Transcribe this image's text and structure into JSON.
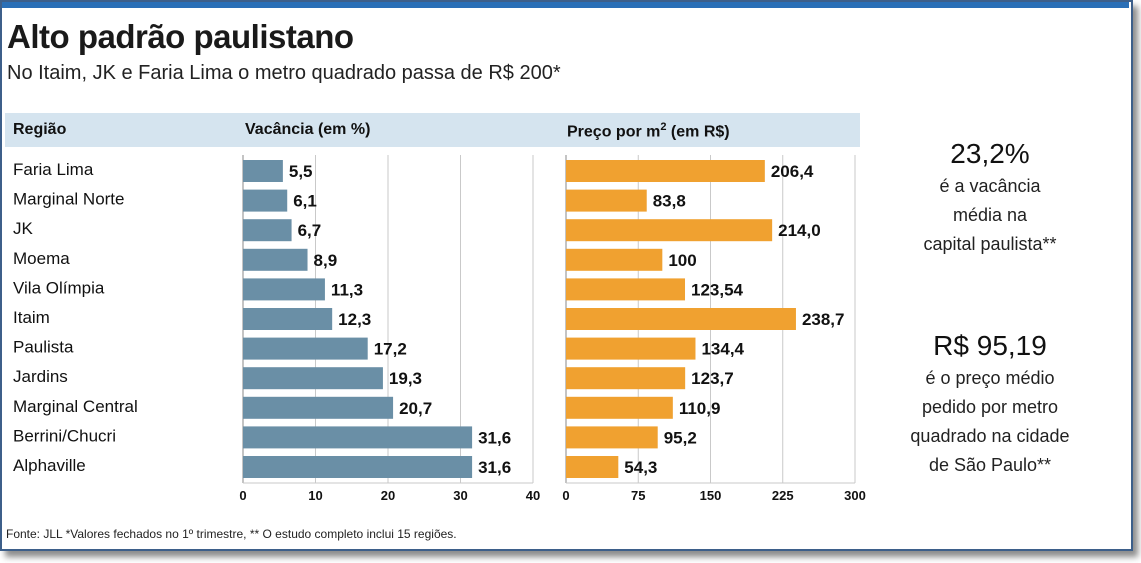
{
  "title": "Alto padrão paulistano",
  "subtitle": "No Itaim, JK e Faria Lima o metro quadrado passa de R$ 200*",
  "headers": {
    "region": "Região",
    "vacancy": "Vacância (em %)",
    "price_prefix": "Preço por m",
    "price_sup": "2",
    "price_suffix": " (em R$)"
  },
  "colors": {
    "vacancy_bar": "#6a8fa6",
    "price_bar": "#f0a130",
    "header_band": "#d5e4ef",
    "frame": "#3d5f8a"
  },
  "chart_data": [
    {
      "type": "bar",
      "orientation": "horizontal",
      "xlabel": "Vacância (em %)",
      "categories": [
        "Faria Lima",
        "Marginal Norte",
        "JK",
        "Moema",
        "Vila Olímpia",
        "Itaim",
        "Paulista",
        "Jardins",
        "Marginal Central",
        "Berrini/Chucri",
        "Alphaville"
      ],
      "values": [
        5.5,
        6.1,
        6.7,
        8.9,
        11.3,
        12.3,
        17.2,
        19.3,
        20.7,
        31.6,
        31.6
      ],
      "value_labels": [
        "5,5",
        "6,1",
        "6,7",
        "8,9",
        "11,3",
        "12,3",
        "17,2",
        "19,3",
        "20,7",
        "31,6",
        "31,6"
      ],
      "xlim": [
        0,
        40
      ],
      "ticks": [
        0,
        10,
        20,
        30,
        40
      ],
      "grid": true
    },
    {
      "type": "bar",
      "orientation": "horizontal",
      "xlabel": "Preço por m2 (em R$)",
      "categories": [
        "Faria Lima",
        "Marginal Norte",
        "JK",
        "Moema",
        "Vila Olímpia",
        "Itaim",
        "Paulista",
        "Jardins",
        "Marginal Central",
        "Berrini/Chucri",
        "Alphaville"
      ],
      "values": [
        206.4,
        83.8,
        214.0,
        100,
        123.54,
        238.7,
        134.4,
        123.7,
        110.9,
        95.2,
        54.3
      ],
      "value_labels": [
        "206,4",
        "83,8",
        "214,0",
        "100",
        "123,54",
        "238,7",
        "134,4",
        "123,7",
        "110,9",
        "95,2",
        "54,3"
      ],
      "xlim": [
        0,
        300
      ],
      "ticks": [
        0,
        75,
        150,
        225,
        300
      ],
      "grid": true
    }
  ],
  "sidebar": {
    "stat1_value": "23,2%",
    "stat1_lines": [
      "é a vacância",
      "média na",
      "capital paulista**"
    ],
    "stat2_value": "R$ 95,19",
    "stat2_lines": [
      "é o preço médio",
      "pedido por metro",
      "quadrado na cidade",
      "de São Paulo**"
    ]
  },
  "footnote": "Fonte: JLL *Valores fechados no 1º trimestre, ** O estudo completo inclui 15 regiões."
}
